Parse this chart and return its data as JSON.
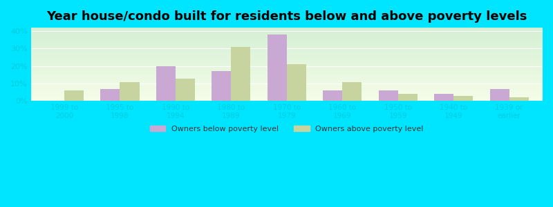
{
  "title": "Year house/condo built for residents below and above poverty levels",
  "categories": [
    "1999 to\n2000",
    "1995 to\n1998",
    "1990 to\n1994",
    "1980 to\n1989",
    "1970 to\n1979",
    "1960 to\n1969",
    "1950 to\n1959",
    "1940 to\n1949",
    "1939 or\nearlier"
  ],
  "below_poverty": [
    0.0,
    7.0,
    20.0,
    17.0,
    38.0,
    6.0,
    6.0,
    4.0,
    7.0
  ],
  "above_poverty": [
    6.0,
    11.0,
    13.0,
    31.0,
    21.0,
    11.0,
    4.0,
    3.0,
    2.0
  ],
  "below_color": "#c9a8d4",
  "above_color": "#c8d4a0",
  "ylabel_ticks": [
    0,
    10,
    20,
    30,
    40
  ],
  "ylim": [
    0,
    42
  ],
  "background_color_top": "#d4f0d4",
  "background_color_bottom": "#f5fde8",
  "outer_bg": "#00e5ff",
  "legend_below": "Owners below poverty level",
  "legend_above": "Owners above poverty level",
  "title_fontsize": 13,
  "bar_width": 0.35
}
